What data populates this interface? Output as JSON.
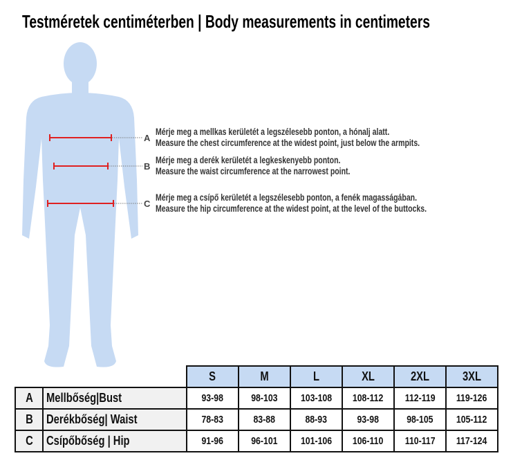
{
  "title": "Testméretek centiméterben | Body measurements in centimeters",
  "colors": {
    "silhouette": "#c6daf3",
    "measure_line": "#e02020",
    "header_fill": "#c6daf3"
  },
  "instructions": [
    {
      "letter": "A",
      "hu": "Mérje meg a mellkas kerületét a legszélesebb ponton, a hónalj alatt.",
      "en": "Measure the chest circumference at the widest point, just below the armpits."
    },
    {
      "letter": "B",
      "hu": "Mérje meg a derék kerületét a legkeskenyebb ponton.",
      "en": "Measure the waist circumference at the narrowest point."
    },
    {
      "letter": "C",
      "hu": "Mérje meg a csípő kerületét a legszélesebb ponton, a fenék magasságában.",
      "en": "Measure the hip circumference at the widest point, at the level of the buttocks."
    }
  ],
  "table": {
    "sizes": [
      "S",
      "M",
      "L",
      "XL",
      "2XL",
      "3XL"
    ],
    "rows": [
      {
        "letter": "A",
        "label": "Mellbőség|Bust",
        "values": [
          "93-98",
          "98-103",
          "103-108",
          "108-112",
          "112-119",
          "119-126"
        ]
      },
      {
        "letter": "B",
        "label": "Derékbőség| Waist",
        "values": [
          "78-83",
          "83-88",
          "88-93",
          "93-98",
          "98-105",
          "105-112"
        ]
      },
      {
        "letter": "C",
        "label": "Csípőbőség | Hip",
        "values": [
          "91-96",
          "96-101",
          "101-106",
          "106-110",
          "110-117",
          "117-124"
        ]
      }
    ]
  }
}
